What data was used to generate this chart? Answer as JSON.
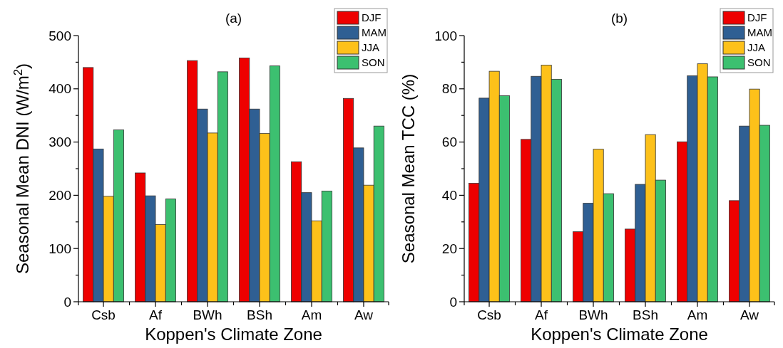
{
  "chart_data": [
    {
      "type": "bar",
      "title": "(a)",
      "xlabel": "Koppen's Climate Zone",
      "ylabel": "Seasonal Mean DNI (W/m$^{2}$)",
      "categories": [
        "Csb",
        "Af",
        "BWh",
        "BSh",
        "Am",
        "Aw"
      ],
      "series": [
        {
          "name": "DJF",
          "color": "#ee0000",
          "values": [
            440,
            242,
            453,
            458,
            263,
            382
          ]
        },
        {
          "name": "MAM",
          "color": "#2f5f93",
          "values": [
            287,
            199,
            362,
            362,
            205,
            289
          ]
        },
        {
          "name": "JJA",
          "color": "#fdc11a",
          "values": [
            198,
            145,
            317,
            316,
            152,
            219
          ]
        },
        {
          "name": "SON",
          "color": "#3cc070",
          "values": [
            323,
            193,
            432,
            443,
            208,
            330
          ]
        }
      ],
      "ylim": [
        0,
        500
      ],
      "yticks": [
        0,
        {
          "value": 50,
          "label": null
        },
        100,
        {
          "value": 150,
          "label": null
        },
        200,
        {
          "value": 250,
          "label": null
        },
        300,
        {
          "value": 350,
          "label": null
        },
        400,
        {
          "value": 450,
          "label": null
        },
        500
      ],
      "legend": "top right",
      "grid": false
    },
    {
      "type": "bar",
      "title": "(b)",
      "xlabel": "Koppen's Climate Zone",
      "ylabel": "Seasonal Mean TCC (%)",
      "categories": [
        "Csb",
        "Af",
        "BWh",
        "BSh",
        "Am",
        "Aw"
      ],
      "series": [
        {
          "name": "DJF",
          "color": "#ee0000",
          "values": [
            44.5,
            61,
            26.3,
            27.3,
            60.1,
            38
          ]
        },
        {
          "name": "MAM",
          "color": "#2f5f93",
          "values": [
            76.5,
            84.7,
            37,
            44.1,
            84.9,
            66
          ]
        },
        {
          "name": "JJA",
          "color": "#fdc11a",
          "values": [
            86.6,
            88.9,
            57.3,
            62.8,
            89.4,
            79.9
          ]
        },
        {
          "name": "SON",
          "color": "#3cc070",
          "values": [
            77.4,
            83.6,
            40.6,
            45.7,
            84.5,
            66.3
          ]
        }
      ],
      "ylim": [
        0,
        100
      ],
      "yticks": [
        0,
        {
          "value": 10,
          "label": null
        },
        20,
        {
          "value": 30,
          "label": null
        },
        40,
        {
          "value": 50,
          "label": null
        },
        60,
        {
          "value": 70,
          "label": null
        },
        80,
        {
          "value": 90,
          "label": null
        },
        100
      ],
      "legend": "top right",
      "grid": false
    }
  ]
}
